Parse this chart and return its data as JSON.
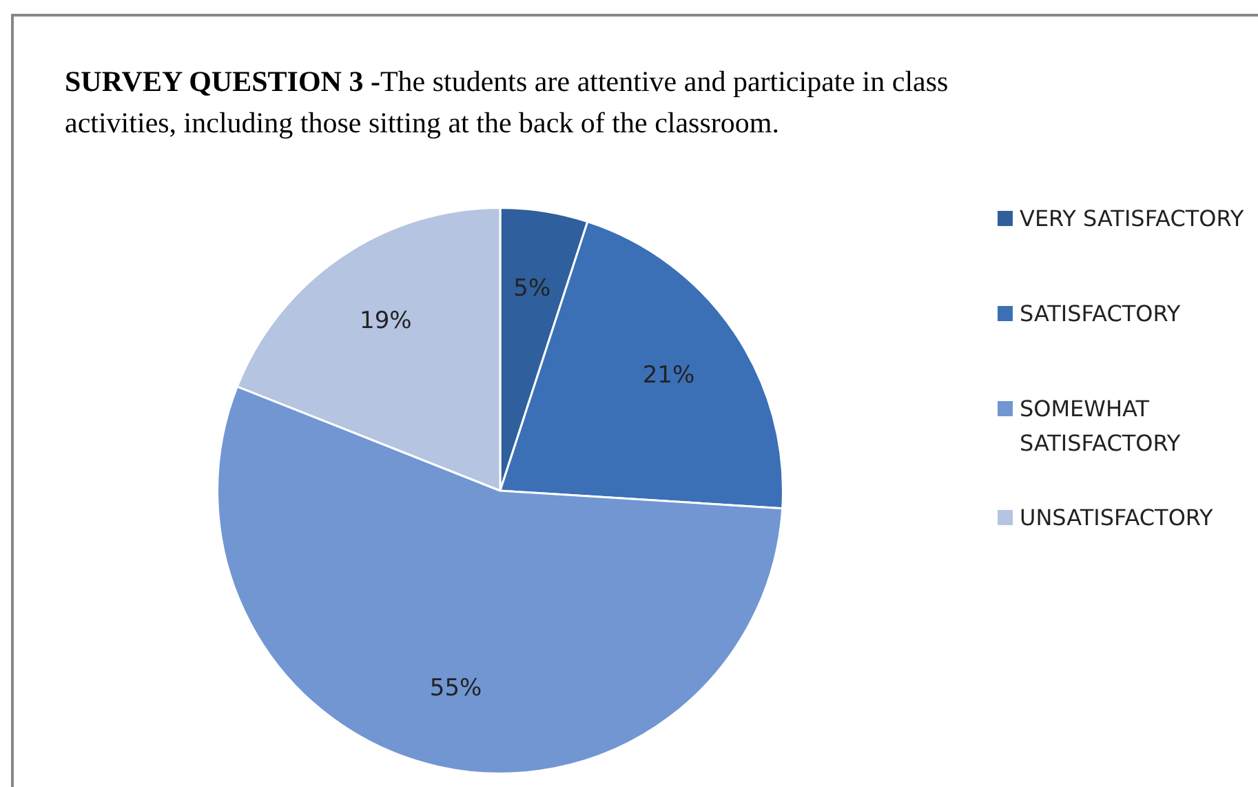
{
  "chart_data": {
    "type": "pie",
    "title": "SURVEY QUESTION 3 -",
    "subtitle": "The students are attentive and participate in class activities, including those sitting at the back of the classroom.",
    "categories": [
      "VERY SATISFACTORY",
      "SATISFACTORY",
      "SOMEWHAT SATISFACTORY",
      "UNSATISFACTORY"
    ],
    "values": [
      5,
      21,
      55,
      19
    ],
    "colors": [
      "#2f5f9c",
      "#3b70b6",
      "#7196d2",
      "#b4c4e1"
    ],
    "value_labels": [
      "5%",
      "21%",
      "55%",
      "19%"
    ],
    "legend": "right"
  }
}
